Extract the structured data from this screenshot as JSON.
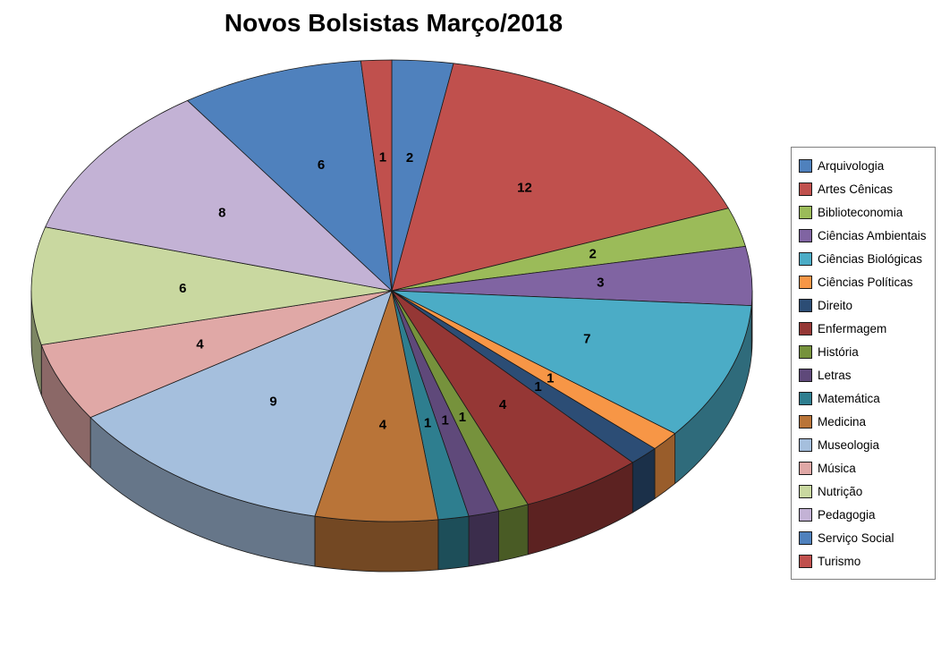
{
  "title": "Novos Bolsistas Março/2018",
  "chart_data": {
    "type": "pie",
    "title": "Novos Bolsistas Março/2018",
    "effect": "3d",
    "direction": "clockwise",
    "start_angle_deg": 0,
    "legend_position": "right",
    "total": 73,
    "labels": [
      "Arquivologia",
      "Artes Cênicas",
      "Biblioteconomia",
      "Ciências Ambientais",
      "Ciências Biológicas",
      "Ciências Políticas",
      "Direito",
      "Enfermagem",
      "História",
      "Letras",
      "Matemática",
      "Medicina",
      "Museologia",
      "Música",
      "Nutrição",
      "Pedagogia",
      "Serviço Social",
      "Turismo"
    ],
    "values": [
      2,
      12,
      2,
      3,
      7,
      1,
      1,
      4,
      1,
      1,
      1,
      4,
      9,
      4,
      6,
      8,
      6,
      1
    ],
    "colors": [
      "#4F81BD",
      "#C0504D",
      "#9BBB59",
      "#8064A2",
      "#4BACC6",
      "#F79646",
      "#2C4D75",
      "#953735",
      "#76923C",
      "#5F497A",
      "#2E7E8F",
      "#B97438",
      "#A5BFDD",
      "#E0A8A6",
      "#C9D8A0",
      "#C3B2D5",
      "#4F81BD",
      "#C0504D"
    ]
  }
}
